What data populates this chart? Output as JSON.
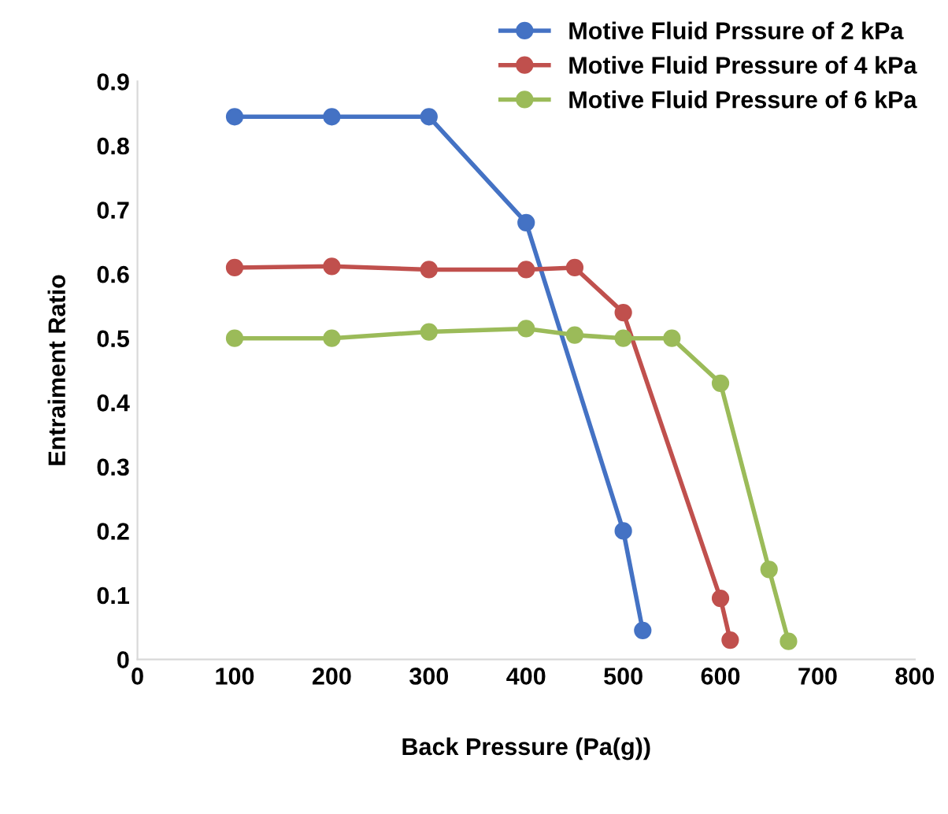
{
  "chart_data": {
    "type": "line",
    "xlabel": "Back Pressure (Pa(g))",
    "ylabel": "Entraiment Ratio",
    "xlim": [
      0,
      800
    ],
    "xticks": [
      0,
      100,
      200,
      300,
      400,
      500,
      600,
      700,
      800
    ],
    "ylim": [
      0,
      0.9
    ],
    "yticks": [
      0,
      0.1,
      0.2,
      0.3,
      0.4,
      0.5,
      0.6,
      0.7,
      0.8,
      0.9
    ],
    "grid": false,
    "legend": "top right",
    "marker": "circle",
    "line_style": "solid",
    "series": [
      {
        "name": "Motive Fluid Prssure of 2 kPa",
        "color": "#4472c4",
        "x": [
          100,
          200,
          300,
          400,
          500,
          520
        ],
        "values": [
          0.845,
          0.845,
          0.845,
          0.68,
          0.2,
          0.045
        ]
      },
      {
        "name": "Motive Fluid Pressure of 4 kPa",
        "color": "#c0504d",
        "x": [
          100,
          200,
          300,
          400,
          450,
          500,
          600,
          610
        ],
        "values": [
          0.61,
          0.612,
          0.607,
          0.607,
          0.61,
          0.54,
          0.095,
          0.03
        ]
      },
      {
        "name": "Motive Fluid Pressure of 6 kPa",
        "color": "#9bbb59",
        "x": [
          100,
          200,
          300,
          400,
          450,
          500,
          550,
          600,
          650,
          670
        ],
        "values": [
          0.5,
          0.5,
          0.51,
          0.515,
          0.505,
          0.5,
          0.5,
          0.43,
          0.14,
          0.028
        ]
      }
    ]
  }
}
